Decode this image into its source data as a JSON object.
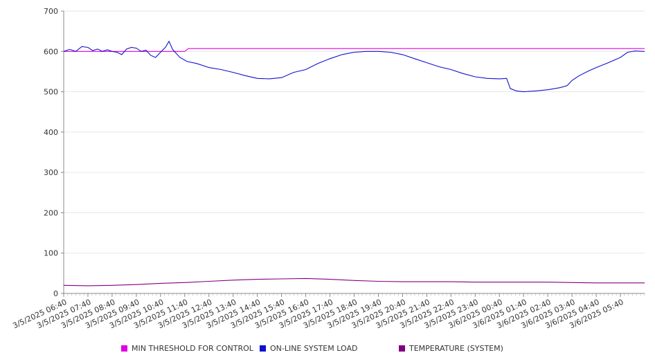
{
  "chart_data": {
    "type": "line",
    "title": "",
    "xlabel": "",
    "ylabel": "",
    "ylim": [
      0,
      700
    ],
    "y_ticks": [
      0,
      100,
      200,
      300,
      400,
      500,
      600,
      700
    ],
    "x_tick_labels": [
      "3/5/2025 06:40",
      "3/5/2025 07:40",
      "3/5/2025 08:40",
      "3/5/2025 09:40",
      "3/5/2025 10:40",
      "3/5/2025 11:40",
      "3/5/2025 12:40",
      "3/5/2025 13:40",
      "3/5/2025 14:40",
      "3/5/2025 15:40",
      "3/5/2025 16:40",
      "3/5/2025 17:40",
      "3/5/2025 18:40",
      "3/5/2025 19:40",
      "3/5/2025 20:40",
      "3/5/2025 21:40",
      "3/5/2025 22:40",
      "3/5/2025 23:40",
      "3/6/2025 00:40",
      "3/6/2025 01:40",
      "3/6/2025 02:40",
      "3/6/2025 03:40",
      "3/6/2025 04:40",
      "3/6/2025 05:40"
    ],
    "grid": "horizontal",
    "legend_position": "bottom",
    "series": [
      {
        "name": "MIN THRESHOLD FOR CONTROL",
        "color": "#e000e0",
        "points": [
          [
            0,
            600
          ],
          [
            5,
            600
          ],
          [
            5.15,
            607
          ],
          [
            24,
            607
          ]
        ]
      },
      {
        "name": "ON-LINE SYSTEM LOAD",
        "color": "#1010d0",
        "points": [
          [
            0,
            600
          ],
          [
            0.25,
            605
          ],
          [
            0.5,
            600
          ],
          [
            0.75,
            612
          ],
          [
            1,
            610
          ],
          [
            1.2,
            602
          ],
          [
            1.4,
            606
          ],
          [
            1.6,
            600
          ],
          [
            1.8,
            604
          ],
          [
            2,
            600
          ],
          [
            2.2,
            598
          ],
          [
            2.4,
            592
          ],
          [
            2.6,
            606
          ],
          [
            2.8,
            610
          ],
          [
            3,
            608
          ],
          [
            3.2,
            600
          ],
          [
            3.4,
            603
          ],
          [
            3.6,
            590
          ],
          [
            3.8,
            585
          ],
          [
            4,
            598
          ],
          [
            4.2,
            610
          ],
          [
            4.35,
            625
          ],
          [
            4.5,
            605
          ],
          [
            4.8,
            585
          ],
          [
            5.1,
            575
          ],
          [
            5.5,
            570
          ],
          [
            6,
            560
          ],
          [
            6.5,
            555
          ],
          [
            7,
            548
          ],
          [
            7.5,
            540
          ],
          [
            8,
            533
          ],
          [
            8.5,
            532
          ],
          [
            9,
            535
          ],
          [
            9.5,
            548
          ],
          [
            10,
            555
          ],
          [
            10.5,
            570
          ],
          [
            11,
            582
          ],
          [
            11.5,
            592
          ],
          [
            12,
            598
          ],
          [
            12.5,
            600
          ],
          [
            13,
            600
          ],
          [
            13.5,
            598
          ],
          [
            14,
            592
          ],
          [
            14.5,
            582
          ],
          [
            15,
            572
          ],
          [
            15.5,
            562
          ],
          [
            16,
            555
          ],
          [
            16.5,
            545
          ],
          [
            17,
            537
          ],
          [
            17.5,
            533
          ],
          [
            18,
            532
          ],
          [
            18.3,
            533
          ],
          [
            18.45,
            508
          ],
          [
            18.7,
            502
          ],
          [
            19,
            500
          ],
          [
            19.5,
            502
          ],
          [
            20,
            505
          ],
          [
            20.5,
            510
          ],
          [
            20.8,
            515
          ],
          [
            21,
            528
          ],
          [
            21.3,
            540
          ],
          [
            21.7,
            552
          ],
          [
            22,
            560
          ],
          [
            22.5,
            572
          ],
          [
            23,
            585
          ],
          [
            23.3,
            598
          ],
          [
            23.6,
            601
          ],
          [
            24,
            600
          ]
        ]
      },
      {
        "name": "TEMPERATURE (SYSTEM)",
        "color": "#800080",
        "points": [
          [
            0,
            20
          ],
          [
            1,
            19
          ],
          [
            2,
            20
          ],
          [
            3,
            22
          ],
          [
            4,
            25
          ],
          [
            5,
            27
          ],
          [
            6,
            30
          ],
          [
            7,
            33
          ],
          [
            8,
            35
          ],
          [
            9,
            36
          ],
          [
            10,
            37
          ],
          [
            11,
            35
          ],
          [
            12,
            32
          ],
          [
            13,
            30
          ],
          [
            14,
            29
          ],
          [
            15,
            29
          ],
          [
            16,
            29
          ],
          [
            17,
            28
          ],
          [
            18,
            28
          ],
          [
            19,
            28
          ],
          [
            20,
            28
          ],
          [
            21,
            27
          ],
          [
            22,
            26
          ],
          [
            23,
            26
          ],
          [
            24,
            26
          ]
        ]
      }
    ]
  }
}
